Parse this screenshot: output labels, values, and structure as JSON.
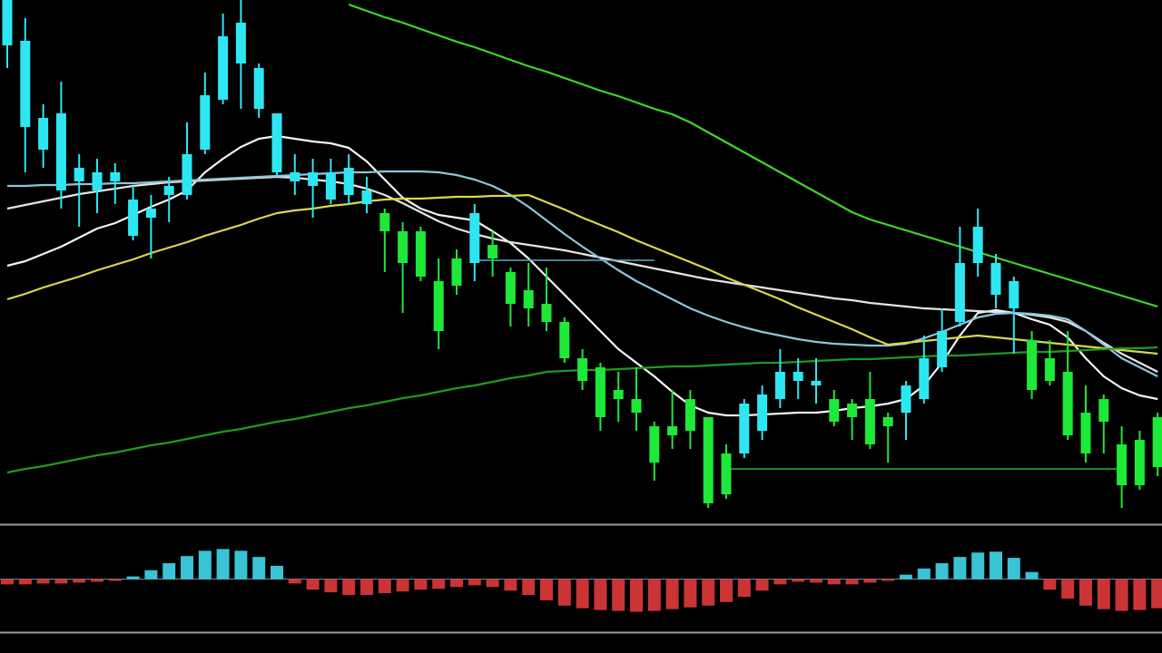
{
  "chart_data": [
    {
      "type": "candlestick",
      "categories": [
        null,
        null,
        null,
        null,
        null,
        null,
        null,
        null,
        null,
        null,
        null,
        null,
        null,
        null,
        null,
        null,
        null,
        null,
        null,
        null,
        null,
        null,
        null,
        null,
        null,
        null,
        null,
        null,
        null,
        null,
        null,
        null,
        null,
        null,
        null,
        null,
        null,
        null,
        null,
        null,
        null,
        null,
        null,
        null,
        null,
        null,
        null,
        null,
        null,
        null,
        null,
        null,
        null,
        null,
        null,
        null,
        null,
        null,
        null,
        null,
        null,
        null,
        null,
        null,
        null
      ],
      "open": [
        53,
        44,
        41.5,
        37,
        38,
        37,
        38,
        32,
        34,
        36.5,
        36.5,
        41.5,
        47,
        51,
        46,
        39,
        38,
        37.5,
        36,
        36.5,
        35.5,
        34.5,
        32.5,
        32.5,
        27,
        29.5,
        29,
        31,
        28,
        26,
        24.5,
        22.5,
        18.5,
        17.5,
        15,
        14,
        11,
        11,
        14,
        12,
        8,
        8,
        10.5,
        14,
        16,
        15.5,
        14,
        13.5,
        14,
        12,
        12.5,
        14,
        17.5,
        22.5,
        29,
        25.5,
        24,
        20.5,
        18.5,
        17,
        12.5,
        14,
        9,
        9.5,
        12
      ],
      "high": [
        58,
        56,
        46.5,
        49,
        41,
        40.5,
        40,
        37.5,
        36.5,
        38.5,
        44.5,
        50,
        56.5,
        58,
        51,
        45.5,
        41,
        40.5,
        40.5,
        41,
        38.5,
        35,
        33.5,
        33,
        29.5,
        30.5,
        35.5,
        32.5,
        28.5,
        29,
        28.5,
        23,
        19.5,
        18,
        17,
        17.5,
        11.5,
        15,
        15,
        12,
        9,
        14,
        15.5,
        19.5,
        18.5,
        18.5,
        15,
        14,
        17,
        12.5,
        16,
        21,
        24,
        33,
        35,
        30,
        27.5,
        21.5,
        20.5,
        21.5,
        15.5,
        14.5,
        11,
        10.5,
        12.5
      ],
      "low": [
        50.5,
        39,
        39.5,
        35,
        33,
        34.5,
        35.5,
        31.5,
        29.5,
        33.5,
        36,
        41,
        46.5,
        46,
        45,
        38.5,
        36.5,
        34,
        35.5,
        35.5,
        34.5,
        28,
        23.5,
        27,
        19.5,
        25.5,
        27,
        27.5,
        22,
        22,
        21.5,
        18,
        15,
        10.5,
        11.5,
        10.5,
        5,
        8.5,
        8.5,
        2,
        3,
        7.5,
        9.5,
        13,
        14,
        13.5,
        11,
        9.5,
        8.5,
        7,
        9.5,
        13.5,
        17,
        22,
        27.5,
        24,
        19,
        14,
        15.5,
        9.5,
        7,
        8,
        2,
        4,
        5.5
      ],
      "close": [
        58,
        53.5,
        45,
        45.5,
        39.5,
        39,
        39,
        36,
        35,
        37.5,
        41,
        47.5,
        54,
        55.5,
        50.5,
        45.5,
        39,
        39,
        39,
        39.5,
        37,
        32.5,
        29,
        27.5,
        21.5,
        26.5,
        34.5,
        29.5,
        24.5,
        24,
        22.5,
        18.5,
        16,
        12,
        14,
        12.5,
        7,
        10,
        10.5,
        2.5,
        3.5,
        13.5,
        14.5,
        17,
        17,
        16,
        11.5,
        12,
        9,
        11,
        15.5,
        18.5,
        21.5,
        29,
        33,
        29,
        27,
        15,
        16,
        10,
        8,
        11.5,
        4.5,
        4.5,
        6.5
      ],
      "up_color": "#2ee6f2",
      "down_color": "#1ee838",
      "ylim": [
        0,
        58
      ],
      "series": [
        {
          "color": "#f4f4f4",
          "values": [
            28.7,
            29.2,
            30,
            30.8,
            31.8,
            32.8,
            33.4,
            34.3,
            35.2,
            36,
            37,
            39,
            40.5,
            41.8,
            42.7,
            43,
            42.7,
            42.4,
            42.2,
            41.7,
            40.2,
            38.2,
            36.2,
            35,
            34.3,
            34,
            33.7,
            32.5,
            31.2,
            29.5,
            27.5,
            25.5,
            23.5,
            21.5,
            19.5,
            18,
            16.5,
            14.8,
            13.3,
            12.5,
            12.2,
            12.2,
            12.3,
            12.4,
            12.5,
            12.5,
            12.7,
            13,
            13.2,
            13.5,
            14,
            15.5,
            18,
            21,
            23.5,
            23.8,
            23.5,
            22.8,
            22.2,
            20.8,
            18.5,
            16.5,
            15.2,
            14.4,
            14
          ]
        },
        {
          "color": "#e4e4e4",
          "values": [
            35,
            35.4,
            35.8,
            36.2,
            36.6,
            36.9,
            37.2,
            37.5,
            37.7,
            37.9,
            38,
            38.1,
            38.2,
            38.3,
            38.4,
            38.5,
            38.4,
            38.2,
            38,
            37.7,
            37.2,
            36.5,
            35.6,
            34.6,
            33.6,
            32.8,
            32.2,
            31.7,
            31.3,
            31,
            30.7,
            30.4,
            30,
            29.6,
            29.2,
            28.8,
            28.4,
            28,
            27.6,
            27.2,
            26.9,
            26.6,
            26.3,
            26,
            25.7,
            25.4,
            25.1,
            24.9,
            24.6,
            24.4,
            24.2,
            24,
            23.9,
            23.8,
            23.7,
            23.6,
            23.5,
            23.3,
            23,
            22.5,
            21.5,
            20.2,
            19,
            18,
            17
          ]
        },
        {
          "color": "#8ec5dc",
          "values": [
            37.5,
            37.5,
            37.6,
            37.6,
            37.7,
            37.7,
            37.8,
            37.8,
            37.9,
            38,
            38.1,
            38.2,
            38.3,
            38.4,
            38.5,
            38.6,
            38.7,
            38.8,
            38.9,
            39,
            39,
            39.1,
            39.1,
            39.1,
            39,
            38.7,
            38.2,
            37.5,
            36.5,
            35.2,
            33.7,
            32.2,
            30.8,
            29.5,
            28.2,
            27,
            26,
            25,
            24,
            23.2,
            22.5,
            21.9,
            21.4,
            21,
            20.6,
            20.3,
            20.1,
            20,
            19.9,
            19.9,
            20.1,
            20.7,
            21.4,
            22.2,
            23,
            23.4,
            23.5,
            23.4,
            23.2,
            22.8,
            21.5,
            20,
            18.5,
            17.5,
            16.5
          ]
        },
        {
          "color": "#d8d84a",
          "values": [
            25,
            25.6,
            26.3,
            26.9,
            27.5,
            28.2,
            28.8,
            29.4,
            30.1,
            30.7,
            31.3,
            32,
            32.6,
            33.2,
            33.9,
            34.5,
            34.8,
            35,
            35.3,
            35.5,
            35.8,
            36,
            36.1,
            36.1,
            36.2,
            36.3,
            36.3,
            36.4,
            36.4,
            36.5,
            35.7,
            34.9,
            34,
            33.2,
            32.4,
            31.5,
            30.7,
            29.9,
            29.1,
            28.3,
            27.4,
            26.6,
            25.8,
            25,
            24.1,
            23.3,
            22.5,
            21.7,
            20.8,
            20,
            20.2,
            20.4,
            20.6,
            20.8,
            21,
            20.8,
            20.6,
            20.4,
            20.2,
            20,
            19.8,
            19.6,
            19.4,
            19.2,
            19
          ]
        },
        {
          "color": "#3fd62a",
          "values": [
            null,
            null,
            null,
            null,
            null,
            null,
            null,
            null,
            null,
            null,
            null,
            null,
            null,
            null,
            null,
            null,
            null,
            null,
            null,
            57.5,
            56.8,
            56.1,
            55.5,
            54.8,
            54.1,
            53.4,
            52.8,
            52.1,
            51.4,
            50.7,
            50.1,
            49.4,
            48.7,
            48,
            47.4,
            46.7,
            46,
            45.4,
            44.5,
            43.4,
            42.3,
            41.2,
            40.1,
            39,
            37.9,
            36.8,
            35.7,
            34.6,
            33.8,
            33.2,
            32.6,
            32,
            31.4,
            30.8,
            30.2,
            29.6,
            29,
            28.4,
            27.8,
            27.2,
            26.6,
            26,
            25.4,
            24.8,
            24.2
          ]
        },
        {
          "color": "#1e9a20",
          "values": [
            5.9,
            6.3,
            6.6,
            7,
            7.4,
            7.8,
            8.1,
            8.5,
            8.9,
            9.2,
            9.6,
            10,
            10.4,
            10.7,
            11.1,
            11.5,
            11.8,
            12.2,
            12.6,
            13,
            13.3,
            13.7,
            14.1,
            14.4,
            14.8,
            15.2,
            15.5,
            15.9,
            16.3,
            16.6,
            17,
            17.1,
            17.2,
            17.2,
            17.3,
            17.4,
            17.5,
            17.6,
            17.6,
            17.7,
            17.8,
            17.9,
            18,
            18,
            18.1,
            18.2,
            18.3,
            18.4,
            18.4,
            18.5,
            18.6,
            18.7,
            18.8,
            18.8,
            18.9,
            19,
            19.1,
            19.2,
            19.2,
            19.3,
            19.4,
            19.5,
            19.6,
            19.6,
            19.7
          ]
        }
      ],
      "hlines": [
        {
          "value": 6.3,
          "color": "#22b82c"
        },
        {
          "value": 29.3,
          "color": "#5fa9c9"
        }
      ]
    },
    {
      "type": "bar",
      "values": [
        -0.6,
        -0.6,
        -0.5,
        -0.5,
        -0.4,
        -0.3,
        -0.2,
        0.3,
        1,
        1.8,
        2.6,
        3.2,
        3.4,
        3.2,
        2.5,
        1.5,
        -0.5,
        -1.2,
        -1.5,
        -1.8,
        -1.8,
        -1.6,
        -1.4,
        -1.2,
        -1.1,
        -0.9,
        -0.7,
        -0.9,
        -1.3,
        -1.8,
        -2.4,
        -3,
        -3.3,
        -3.5,
        -3.6,
        -3.7,
        -3.6,
        -3.4,
        -3.2,
        -3,
        -2.6,
        -2,
        -1.3,
        -0.6,
        -0.3,
        -0.4,
        -0.6,
        -0.6,
        -0.4,
        -0.2,
        0.5,
        1.2,
        1.8,
        2.5,
        3,
        3.1,
        2.4,
        0.8,
        -1.2,
        -2.2,
        -3,
        -3.4,
        -3.6,
        -3.5,
        -3.3
      ],
      "pos_color": "#3fd8ec",
      "neg_color": "#e03a3a",
      "ylim": [
        -6,
        6
      ]
    }
  ]
}
